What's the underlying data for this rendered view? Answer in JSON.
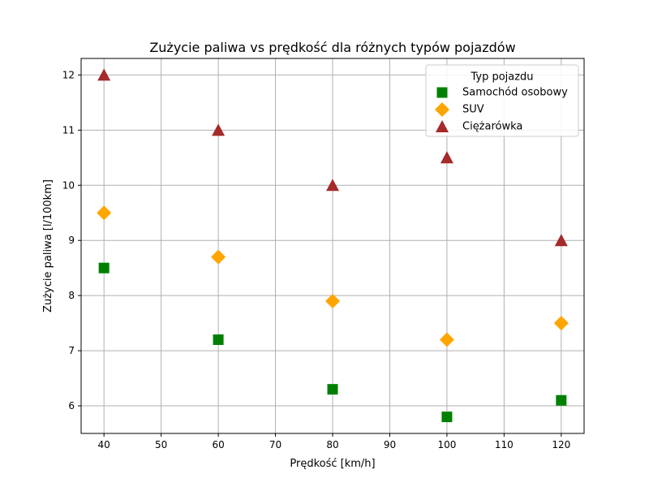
{
  "chart_data": {
    "type": "scatter",
    "title": "Zużycie paliwa vs prędkość dla różnych typów pojazdów",
    "xlabel": "Prędkość [km/h]",
    "ylabel": "Zużycie paliwa [l/100km]",
    "xlim": [
      36,
      124
    ],
    "ylim": [
      5.5,
      12.3
    ],
    "x_ticks": [
      40,
      50,
      60,
      70,
      80,
      90,
      100,
      110,
      120
    ],
    "y_ticks": [
      6,
      7,
      8,
      9,
      10,
      11,
      12
    ],
    "grid": true,
    "legend": {
      "title": "Typ pojazdu",
      "placement": "top-right"
    },
    "series": [
      {
        "name": "Samochód osobowy",
        "marker": "square",
        "color": "#008000",
        "x": [
          40,
          60,
          80,
          100,
          120
        ],
        "y": [
          8.5,
          7.2,
          6.3,
          5.8,
          6.1
        ]
      },
      {
        "name": "SUV",
        "marker": "diamond",
        "color": "#FFA500",
        "x": [
          40,
          60,
          80,
          100,
          120
        ],
        "y": [
          9.5,
          8.7,
          7.9,
          7.2,
          7.5
        ]
      },
      {
        "name": "Ciężarówka",
        "marker": "triangle",
        "color": "#A52A2A",
        "x": [
          40,
          60,
          80,
          100,
          120
        ],
        "y": [
          12.0,
          11.0,
          10.0,
          10.5,
          9.0
        ]
      }
    ]
  }
}
